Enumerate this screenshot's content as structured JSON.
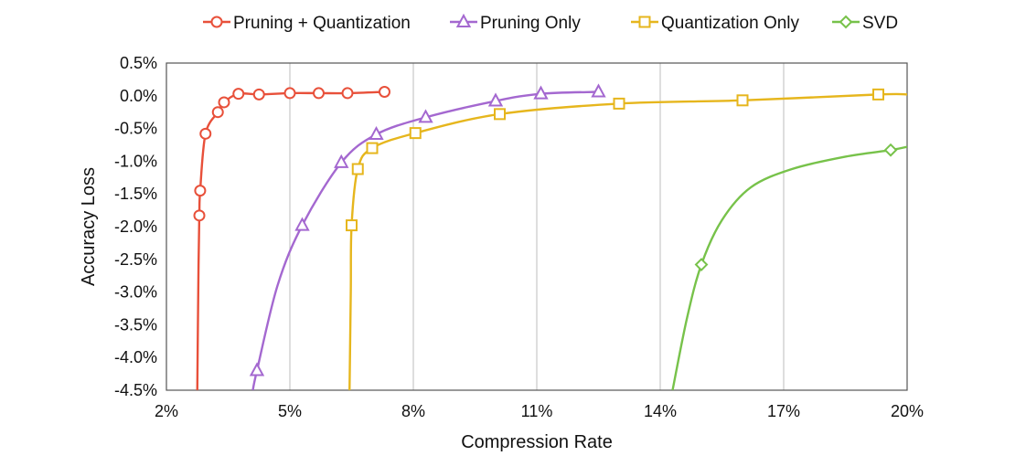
{
  "chart_data": {
    "type": "line",
    "xlabel": "Compression Rate",
    "ylabel": "Accuracy Loss",
    "xlim": [
      2,
      20
    ],
    "ylim": [
      -4.5,
      0.5
    ],
    "x_ticks": [
      2,
      5,
      8,
      11,
      14,
      17,
      20
    ],
    "x_tick_labels": [
      "2%",
      "5%",
      "8%",
      "11%",
      "14%",
      "17%",
      "20%"
    ],
    "y_ticks": [
      0.5,
      0.0,
      -0.5,
      -1.0,
      -1.5,
      -2.0,
      -2.5,
      -3.0,
      -3.5,
      -4.0,
      -4.5
    ],
    "y_tick_labels": [
      "0.5%",
      "0.0%",
      "-0.5%",
      "-1.0%",
      "-1.5%",
      "-2.0%",
      "-2.5%",
      "-3.0%",
      "-3.5%",
      "-4.0%",
      "-4.5%"
    ],
    "grid": "vertical",
    "legend_position": "top",
    "series": [
      {
        "name": "Pruning + Quantization",
        "color": "#e8503a",
        "marker": "circle",
        "points": [
          [
            2.8,
            -1.83
          ],
          [
            2.82,
            -1.45
          ],
          [
            2.95,
            -0.58
          ],
          [
            3.25,
            -0.25
          ],
          [
            3.4,
            -0.1
          ],
          [
            3.75,
            0.03
          ],
          [
            4.25,
            0.02
          ],
          [
            5.0,
            0.04
          ],
          [
            5.7,
            0.04
          ],
          [
            6.4,
            0.04
          ],
          [
            7.3,
            0.06
          ]
        ],
        "curve": [
          [
            2.75,
            -4.5
          ],
          [
            2.78,
            -2.6
          ],
          [
            2.8,
            -1.83
          ],
          [
            2.82,
            -1.45
          ],
          [
            2.95,
            -0.58
          ],
          [
            3.25,
            -0.25
          ],
          [
            3.4,
            -0.1
          ],
          [
            3.75,
            0.03
          ],
          [
            4.25,
            0.02
          ],
          [
            5.0,
            0.04
          ],
          [
            5.7,
            0.04
          ],
          [
            6.4,
            0.04
          ],
          [
            7.3,
            0.06
          ]
        ]
      },
      {
        "name": "Pruning Only",
        "color": "#a468d0",
        "marker": "triangle",
        "points": [
          [
            4.2,
            -4.2
          ],
          [
            5.3,
            -1.98
          ],
          [
            6.25,
            -1.02
          ],
          [
            7.1,
            -0.59
          ],
          [
            8.3,
            -0.33
          ],
          [
            10.0,
            -0.08
          ],
          [
            11.1,
            0.03
          ],
          [
            12.5,
            0.06
          ]
        ],
        "curve": [
          [
            4.1,
            -4.5
          ],
          [
            4.2,
            -4.2
          ],
          [
            4.7,
            -2.9
          ],
          [
            5.3,
            -1.98
          ],
          [
            6.25,
            -1.02
          ],
          [
            7.1,
            -0.59
          ],
          [
            8.3,
            -0.33
          ],
          [
            10.0,
            -0.08
          ],
          [
            11.1,
            0.03
          ],
          [
            12.5,
            0.06
          ]
        ]
      },
      {
        "name": "Quantization Only",
        "color": "#e6b61d",
        "marker": "square",
        "points": [
          [
            6.5,
            -1.98
          ],
          [
            6.65,
            -1.12
          ],
          [
            7.0,
            -0.8
          ],
          [
            8.05,
            -0.57
          ],
          [
            10.1,
            -0.28
          ],
          [
            13.0,
            -0.12
          ],
          [
            16.0,
            -0.07
          ],
          [
            19.3,
            0.02
          ]
        ],
        "curve": [
          [
            6.45,
            -4.5
          ],
          [
            6.48,
            -3.0
          ],
          [
            6.5,
            -1.98
          ],
          [
            6.65,
            -1.12
          ],
          [
            7.0,
            -0.8
          ],
          [
            8.05,
            -0.57
          ],
          [
            10.1,
            -0.28
          ],
          [
            13.0,
            -0.12
          ],
          [
            16.0,
            -0.07
          ],
          [
            19.3,
            0.02
          ],
          [
            20.0,
            0.02
          ]
        ]
      },
      {
        "name": "SVD",
        "color": "#77c24a",
        "marker": "diamond",
        "points": [
          [
            15.0,
            -2.58
          ],
          [
            19.6,
            -0.83
          ]
        ],
        "curve": [
          [
            14.3,
            -4.5
          ],
          [
            14.65,
            -3.4
          ],
          [
            15.0,
            -2.58
          ],
          [
            15.5,
            -1.9
          ],
          [
            16.2,
            -1.4
          ],
          [
            17.2,
            -1.12
          ],
          [
            18.5,
            -0.93
          ],
          [
            19.6,
            -0.83
          ],
          [
            20.0,
            -0.78
          ]
        ]
      }
    ]
  }
}
